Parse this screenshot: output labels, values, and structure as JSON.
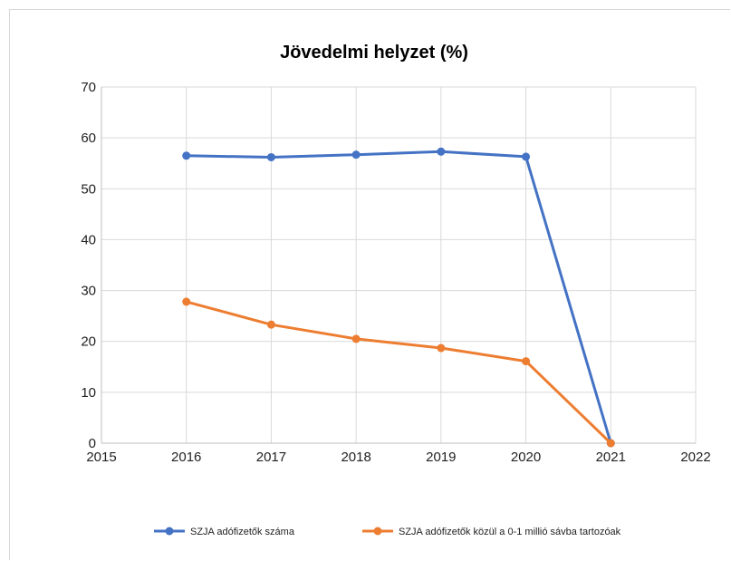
{
  "chart_data": {
    "type": "line",
    "title": "Jövedelmi helyzet (%)",
    "xlabel": "",
    "ylabel": "",
    "xlim": [
      2015,
      2022
    ],
    "ylim": [
      0,
      70
    ],
    "xticks": [
      2015,
      2016,
      2017,
      2018,
      2019,
      2020,
      2021,
      2022
    ],
    "yticks": [
      0,
      10,
      20,
      30,
      40,
      50,
      60,
      70
    ],
    "grid": true,
    "legend_position": "bottom",
    "series": [
      {
        "name": "SZJA adófizetők száma",
        "color": "#4472C4",
        "x": [
          2016,
          2017,
          2018,
          2019,
          2020,
          2021
        ],
        "y": [
          56.5,
          56.2,
          56.7,
          57.3,
          56.3,
          0
        ]
      },
      {
        "name": "SZJA adófizetők közül a 0-1 millió sávba tartozóak",
        "color": "#ED7D31",
        "x": [
          2016,
          2017,
          2018,
          2019,
          2020,
          2021
        ],
        "y": [
          27.8,
          23.3,
          20.5,
          18.7,
          16.1,
          0
        ]
      }
    ]
  }
}
